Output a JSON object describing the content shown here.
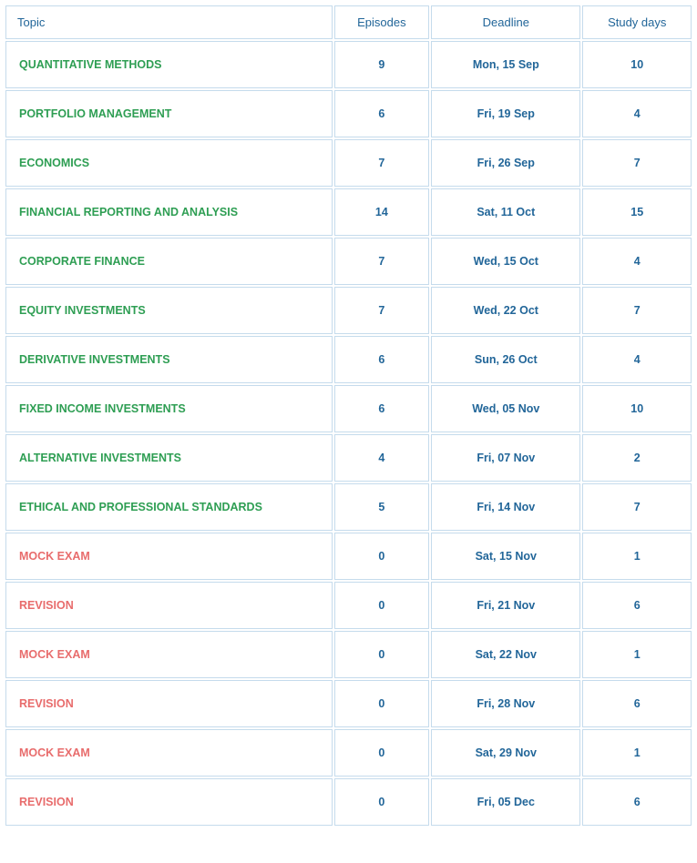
{
  "table": {
    "headers": {
      "topic": "Topic",
      "episodes": "Episodes",
      "deadline": "Deadline",
      "study_days": "Study days"
    },
    "colors": {
      "green": "#2e9e53",
      "red": "#e86c6c",
      "value": "#226699",
      "border": "#c5dbec",
      "background": "#ffffff"
    },
    "rows": [
      {
        "topic": "QUANTITATIVE METHODS",
        "episodes": "9",
        "deadline": "Mon, 15 Sep",
        "study_days": "10",
        "color": "green"
      },
      {
        "topic": "PORTFOLIO MANAGEMENT",
        "episodes": "6",
        "deadline": "Fri, 19 Sep",
        "study_days": "4",
        "color": "green"
      },
      {
        "topic": "ECONOMICS",
        "episodes": "7",
        "deadline": "Fri, 26 Sep",
        "study_days": "7",
        "color": "green"
      },
      {
        "topic": "FINANCIAL REPORTING AND ANALYSIS",
        "episodes": "14",
        "deadline": "Sat, 11 Oct",
        "study_days": "15",
        "color": "green"
      },
      {
        "topic": "CORPORATE FINANCE",
        "episodes": "7",
        "deadline": "Wed, 15 Oct",
        "study_days": "4",
        "color": "green"
      },
      {
        "topic": "EQUITY INVESTMENTS",
        "episodes": "7",
        "deadline": "Wed, 22 Oct",
        "study_days": "7",
        "color": "green"
      },
      {
        "topic": "DERIVATIVE INVESTMENTS",
        "episodes": "6",
        "deadline": "Sun, 26 Oct",
        "study_days": "4",
        "color": "green"
      },
      {
        "topic": "FIXED INCOME INVESTMENTS",
        "episodes": "6",
        "deadline": "Wed, 05 Nov",
        "study_days": "10",
        "color": "green"
      },
      {
        "topic": "ALTERNATIVE INVESTMENTS",
        "episodes": "4",
        "deadline": "Fri, 07 Nov",
        "study_days": "2",
        "color": "green"
      },
      {
        "topic": "ETHICAL AND PROFESSIONAL STANDARDS",
        "episodes": "5",
        "deadline": "Fri, 14 Nov",
        "study_days": "7",
        "color": "green"
      },
      {
        "topic": "MOCK EXAM",
        "episodes": "0",
        "deadline": "Sat, 15 Nov",
        "study_days": "1",
        "color": "red"
      },
      {
        "topic": "REVISION",
        "episodes": "0",
        "deadline": "Fri, 21 Nov",
        "study_days": "6",
        "color": "red"
      },
      {
        "topic": "MOCK EXAM",
        "episodes": "0",
        "deadline": "Sat, 22 Nov",
        "study_days": "1",
        "color": "red"
      },
      {
        "topic": "REVISION",
        "episodes": "0",
        "deadline": "Fri, 28 Nov",
        "study_days": "6",
        "color": "red"
      },
      {
        "topic": "MOCK EXAM",
        "episodes": "0",
        "deadline": "Sat, 29 Nov",
        "study_days": "1",
        "color": "red"
      },
      {
        "topic": "REVISION",
        "episodes": "0",
        "deadline": "Fri, 05 Dec",
        "study_days": "6",
        "color": "red"
      }
    ]
  }
}
